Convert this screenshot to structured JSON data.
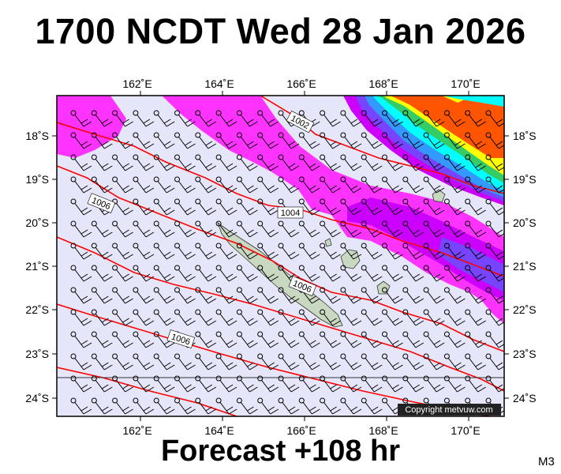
{
  "header": {
    "title": "1700 NCDT Wed 28 Jan 2026"
  },
  "footer": {
    "forecast": "Forecast +108 hr",
    "model_code": "M3"
  },
  "map": {
    "projection": "lon-lat",
    "lon_range_deg_e": [
      160.0,
      171.0
    ],
    "lat_range_deg_s": [
      17.0,
      24.4
    ],
    "lon_ticks": [
      "162˚E",
      "164˚E",
      "166˚E",
      "168˚E",
      "170˚E"
    ],
    "lat_ticks": [
      "18˚S",
      "19˚S",
      "20˚S",
      "21˚S",
      "22˚S",
      "23˚S",
      "24˚S"
    ],
    "isobars": [
      {
        "label": "1002"
      },
      {
        "label": "1004"
      },
      {
        "label": "1006"
      },
      {
        "label": "1006"
      },
      {
        "label": "1006"
      }
    ],
    "colors": {
      "background": "#e6e6fa",
      "isobar": "#ff0000",
      "rain_light": "#ff33ff",
      "rain_moderate": "#cc00ff",
      "rain_heavy": "#7744ff",
      "rain_band_blue": "#3399ff",
      "rain_band_cyan": "#00ffff",
      "rain_band_green": "#33cc66",
      "rain_band_yellow": "#ffff00",
      "rain_very_heavy": "#ff5500",
      "land": "#c9d8c0"
    },
    "wind_barbs": "uniform south-easterly trade winds across the domain",
    "copyright": "Copyright metvuw.com"
  }
}
